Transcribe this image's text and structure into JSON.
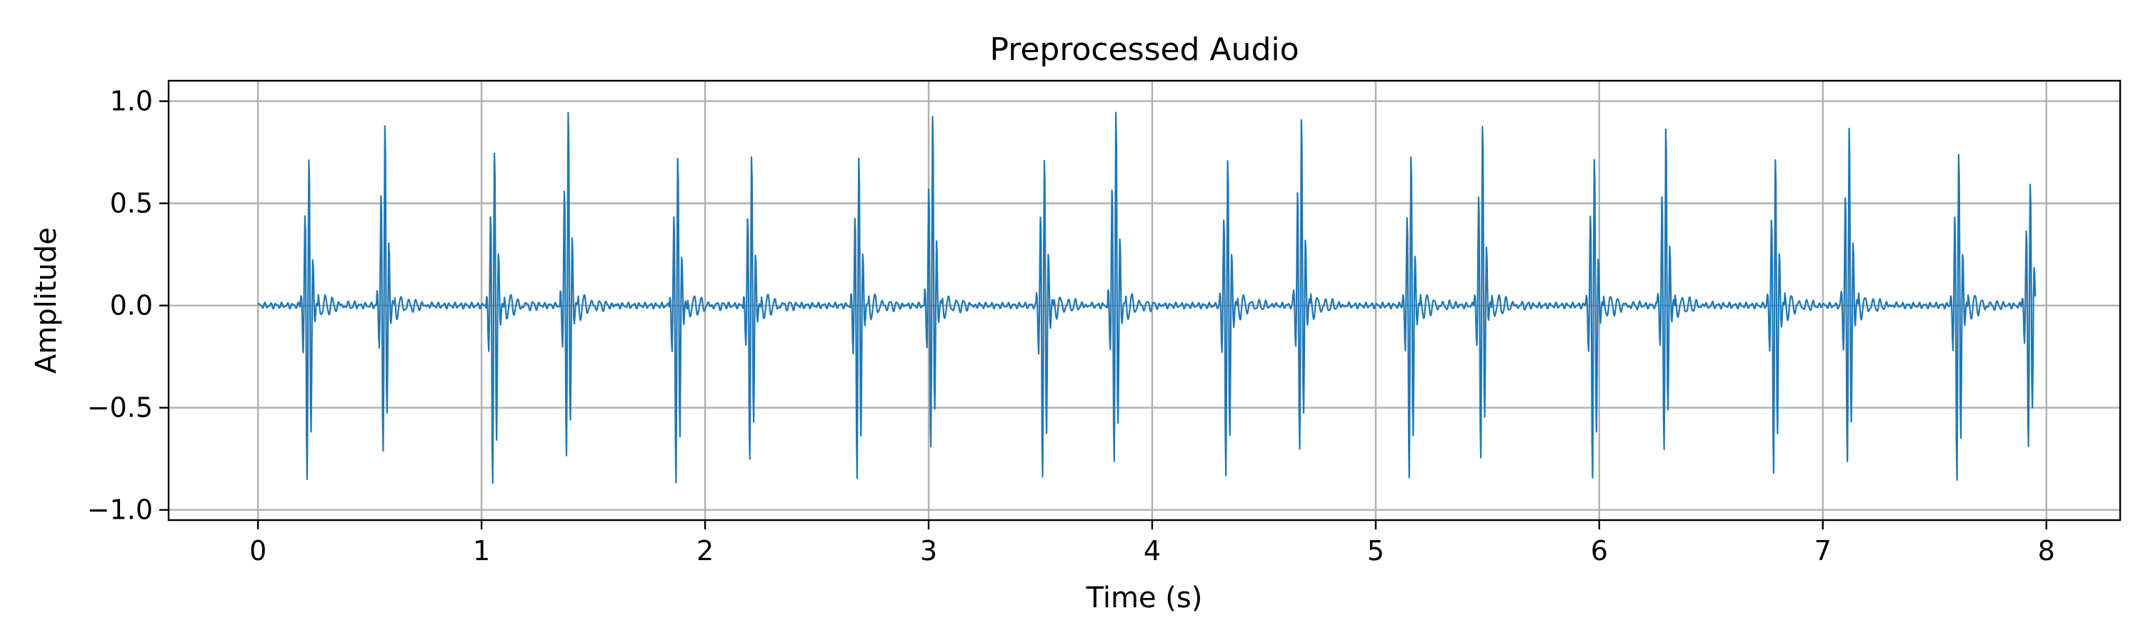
{
  "chart_data": {
    "type": "line",
    "title": "Preprocessed Audio",
    "xlabel": "Time (s)",
    "ylabel": "Amplitude",
    "xlim": [
      -0.4,
      8.33
    ],
    "ylim": [
      -1.05,
      1.1
    ],
    "xticks": [
      0,
      1,
      2,
      3,
      4,
      5,
      6,
      7,
      8
    ],
    "xtick_labels": [
      "0",
      "1",
      "2",
      "3",
      "4",
      "5",
      "6",
      "7",
      "8"
    ],
    "yticks": [
      1.0,
      0.5,
      0.0,
      -0.5,
      -1.0
    ],
    "ytick_labels": [
      "1.0",
      "0.5",
      "0.0",
      "−0.5",
      "−1.0"
    ],
    "grid": true,
    "line_color": "#1f77b4",
    "series": [
      {
        "duration_s": 7.95,
        "sounds": [
          {
            "t": 0.225,
            "peak": 0.75,
            "trough": -0.92
          },
          {
            "t": 0.565,
            "peak": 0.94,
            "trough": -0.78
          },
          {
            "t": 1.055,
            "peak": 0.78,
            "trough": -0.95
          },
          {
            "t": 1.385,
            "peak": 1.0,
            "trough": -0.81
          },
          {
            "t": 1.875,
            "peak": 0.76,
            "trough": -0.94
          },
          {
            "t": 2.205,
            "peak": 0.76,
            "trough": -0.82
          },
          {
            "t": 2.685,
            "peak": 0.76,
            "trough": -0.93
          },
          {
            "t": 3.015,
            "peak": 0.99,
            "trough": -0.76
          },
          {
            "t": 3.515,
            "peak": 0.77,
            "trough": -0.93
          },
          {
            "t": 3.835,
            "peak": 1.0,
            "trough": -0.84
          },
          {
            "t": 4.335,
            "peak": 0.76,
            "trough": -0.93
          },
          {
            "t": 4.665,
            "peak": 0.98,
            "trough": -0.78
          },
          {
            "t": 5.155,
            "peak": 0.77,
            "trough": -0.93
          },
          {
            "t": 5.475,
            "peak": 0.92,
            "trough": -0.8
          },
          {
            "t": 5.975,
            "peak": 0.76,
            "trough": -0.92
          },
          {
            "t": 6.295,
            "peak": 0.92,
            "trough": -0.76
          },
          {
            "t": 6.785,
            "peak": 0.76,
            "trough": -0.91
          },
          {
            "t": 7.115,
            "peak": 0.93,
            "trough": -0.84
          },
          {
            "t": 7.605,
            "peak": 0.78,
            "trough": -0.94
          },
          {
            "t": 7.925,
            "peak": 0.62,
            "trough": -0.74
          }
        ]
      }
    ]
  }
}
